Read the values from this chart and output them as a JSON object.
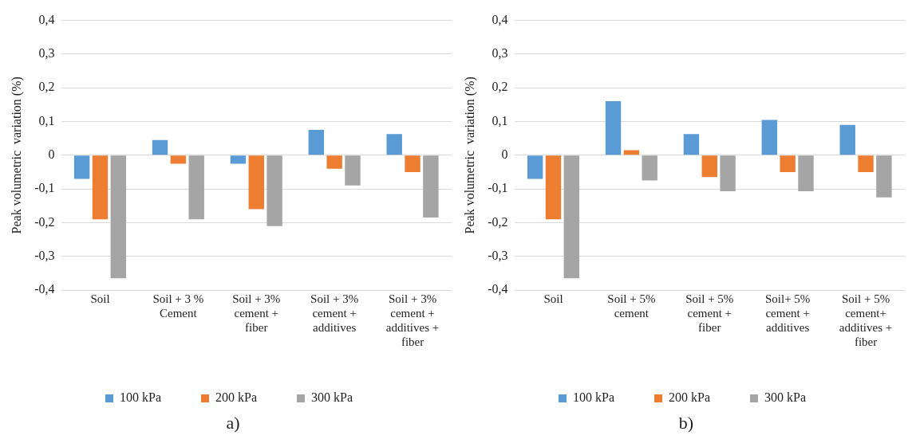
{
  "chart_data": [
    {
      "type": "bar",
      "ylabel": "Peak volumetric  variation (%)",
      "categories": [
        "Soil",
        "Soil + 3 % Cement",
        "Soil + 3% cement + fiber",
        "Soil + 3% cement + additives",
        "Soil + 3% cement + additives + fiber"
      ],
      "series": [
        {
          "name": "100 kPa",
          "color": "#5b9bd5",
          "values": [
            -0.07,
            0.045,
            -0.025,
            0.075,
            0.063
          ]
        },
        {
          "name": "200 kPa",
          "color": "#ed7d31",
          "values": [
            -0.19,
            -0.025,
            -0.16,
            -0.04,
            -0.05
          ]
        },
        {
          "name": "300 kPa",
          "color": "#a5a5a5",
          "values": [
            -0.365,
            -0.19,
            -0.21,
            -0.09,
            -0.185
          ]
        }
      ],
      "ylim": [
        -0.4,
        0.4
      ],
      "yticks": [
        {
          "value": -0.4,
          "label": "-0,4"
        },
        {
          "value": -0.3,
          "label": "-0,3"
        },
        {
          "value": -0.2,
          "label": "-0,2"
        },
        {
          "value": -0.1,
          "label": "-0,1"
        },
        0,
        {
          "value": 0.1,
          "label": "0,1"
        },
        {
          "value": 0.2,
          "label": "0,2"
        },
        {
          "value": 0.3,
          "label": "0,3"
        },
        {
          "value": 0.4,
          "label": "0,4"
        }
      ],
      "grid": "y",
      "legend": "bottom",
      "annotations": [
        "a)"
      ]
    },
    {
      "type": "bar",
      "ylabel": "Peak volumetric  variation (%)",
      "categories": [
        "Soil",
        "Soil + 5% cement",
        "Soil + 5% cement + fiber",
        "Soil+ 5% cement + additives",
        "Soil + 5% cement+ additives + fiber"
      ],
      "series": [
        {
          "name": "100 kPa",
          "color": "#5b9bd5",
          "values": [
            -0.07,
            0.16,
            0.063,
            0.105,
            0.09
          ]
        },
        {
          "name": "200 kPa",
          "color": "#ed7d31",
          "values": [
            -0.19,
            0.015,
            -0.065,
            -0.05,
            -0.05
          ]
        },
        {
          "name": "300 kPa",
          "color": "#a5a5a5",
          "values": [
            -0.365,
            -0.075,
            -0.107,
            -0.107,
            -0.125
          ]
        }
      ],
      "ylim": [
        -0.4,
        0.4
      ],
      "yticks": [
        {
          "value": -0.4,
          "label": "-0,4"
        },
        {
          "value": -0.3,
          "label": "-0,3"
        },
        {
          "value": -0.2,
          "label": "-0,2"
        },
        {
          "value": -0.1,
          "label": "-0,1"
        },
        0,
        {
          "value": 0.1,
          "label": "0,1"
        },
        {
          "value": 0.2,
          "label": "0,2"
        },
        {
          "value": 0.3,
          "label": "0,3"
        },
        {
          "value": 0.4,
          "label": "0,4"
        }
      ],
      "grid": "y",
      "legend": "bottom",
      "annotations": [
        "b)"
      ]
    }
  ]
}
